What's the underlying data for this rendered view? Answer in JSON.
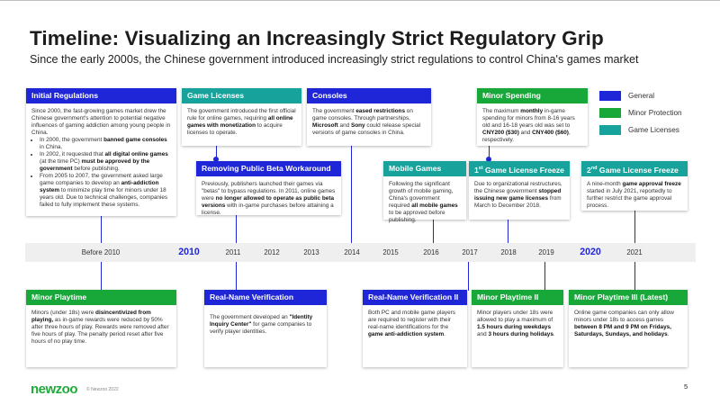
{
  "header": {
    "title": "Timeline: Visualizing an Increasingly Strict Regulatory Grip",
    "subtitle": "Since the early 2000s, the Chinese government introduced increasingly strict regulations to control China's games market"
  },
  "legend": [
    {
      "label": "General",
      "color": "#1f26d8"
    },
    {
      "label": "Minor Protection",
      "color": "#18a83a"
    },
    {
      "label": "Game Licenses",
      "color": "#17a39b"
    }
  ],
  "timeline": [
    "Before 2010",
    "2010",
    "2011",
    "2012",
    "2013",
    "2014",
    "2015",
    "2016",
    "2017",
    "2018",
    "2019",
    "2020",
    "2021"
  ],
  "cards": {
    "initial": {
      "title": "Initial Regulations",
      "p1": "Since 2000, the fast-growing games market drew the Chinese government's attention to potential negative influences of gaming addiction among young people in China.",
      "b1_a": "In 2000, the government ",
      "b1_b": "banned game consoles",
      "b1_c": " in China.",
      "b2_a": "In 2002, it requested that ",
      "b2_b": "all digital online games",
      "b2_c": " (at the time PC) ",
      "b2_d": "must be approved by the government",
      "b2_e": " before publishing.",
      "b3_a": "From 2005 to 2007, the government asked large game companies to develop an ",
      "b3_b": "anti-addiction system",
      "b3_c": " to minimize play time for minors under 18 years old. Due to technical challenges, companies failed to fully implement these systems."
    },
    "licenses": {
      "title": "Game Licenses",
      "t1": "The government introduced the first official rule for online games, requiring ",
      "t2": "all online games with monetization",
      "t3": " to acquire licenses to operate."
    },
    "consoles": {
      "title": "Consoles",
      "t1": "The government ",
      "t2": "eased restrictions",
      "t3": " on game consoles. Through partnerships, ",
      "t4": "Microsoft",
      "t5": " and ",
      "t6": "Sony",
      "t7": " could release special versions of game consoles in China."
    },
    "spending": {
      "title": "Minor Spending",
      "t1": "The maximum ",
      "t2": "monthly",
      "t3": " in-game spending for minors from 8-16 years old and 16-18 years old was set to ",
      "t4": "CNY200 ($30)",
      "t5": " and ",
      "t6": "CNY400 ($60)",
      "t7": ", respectively."
    },
    "beta": {
      "title": "Removing Public Beta Workaround",
      "t1": "Previously, publishers launched their games via \"betas\" to bypass regulations. In 2011, online games were ",
      "t2": "no longer allowed to operate as public beta versions",
      "t3": " with in-game purchases before attaining a license."
    },
    "mobile": {
      "title": "Mobile Games",
      "t1": "Following the significant growth of mobile gaming, China's government required ",
      "t2": "all mobile games",
      "t3": " to be approved before publishing."
    },
    "freeze1": {
      "title_pre": "1",
      "title_sup": "st",
      "title_post": " Game License Freeze",
      "t1": "Due to organizational restructures, the Chinese government ",
      "t2": "stopped issuing new game licenses",
      "t3": " from March to December 2018."
    },
    "freeze2": {
      "title_pre": "2",
      "title_sup": "nd",
      "title_post": " Game License Freeze",
      "t1": "A nine-month ",
      "t2": "game approval freeze",
      "t3": " started in July 2021, reportedly to further restrict the game approval process."
    },
    "playtime1": {
      "title": "Minor Playtime",
      "t1": "Minors (under 18s) were ",
      "t2": "disincentivized from playing,",
      "t3": " as in-game rewards were reduced by 50% after three hours of play. Rewards were removed after five hours of play. The penalty period reset after five hours of no play time."
    },
    "realname1": {
      "title": "Real-Name Verification",
      "t1": "The government developed an ",
      "t2": "\"Identity Inquiry Center\"",
      "t3": " for game companies to verify player identities."
    },
    "realname2": {
      "title": "Real-Name Verification II",
      "t1": "Both PC and mobile game players are required to register with their real-name identifications for the ",
      "t2": "game anti-addiction system",
      "t3": "."
    },
    "playtime2": {
      "title": "Minor Playtime II",
      "t1": "Minor players under 18s were allowed to play a maximum of ",
      "t2": "1.5 hours during weekdays",
      "t3": " and ",
      "t4": "3 hours during holidays",
      "t5": "."
    },
    "playtime3": {
      "title": "Minor Playtime III (Latest)",
      "t1": "Online game companies can only allow minors under 18s to access games ",
      "t2": "between 8 PM and 9 PM on Fridays, Saturdays, Sundays, and holidays",
      "t3": "."
    }
  },
  "footer": {
    "logo": "newzoo",
    "copyright": "© Newzoo 2022",
    "page": "5"
  }
}
